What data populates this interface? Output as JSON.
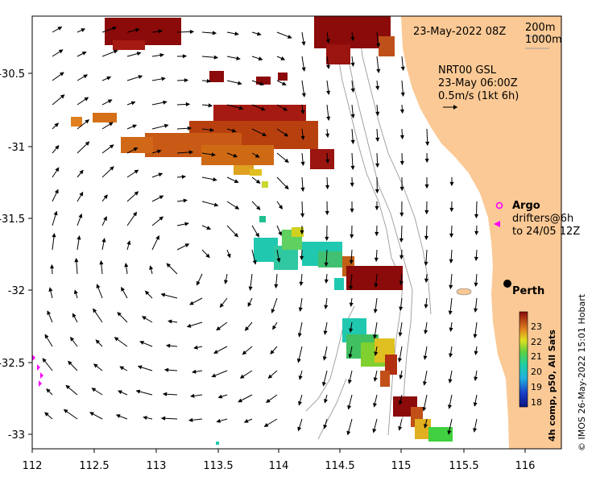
{
  "header": {
    "date_label": "23-May-2022 08Z",
    "depth_200": "200m",
    "depth_1000": "1000m"
  },
  "currents": {
    "line1": "NRT00 GSL",
    "line2": "23-May 06:00Z",
    "line3": "0.5m/s (1kt 6h)"
  },
  "legend": {
    "argo": "Argo",
    "drifters_line1": "drifters@6h",
    "drifters_line2": "to 24/05 12Z"
  },
  "city": {
    "name": "Perth"
  },
  "colorbar": {
    "title": "4h comp, p50, All Sats",
    "ticks": [
      "23",
      "22",
      "21",
      "20",
      "19",
      "18"
    ]
  },
  "credit": "© IMOS 26-May-2022 15:01 Hobart",
  "axes": {
    "x_ticks": [
      "112",
      "112.5",
      "113",
      "113.5",
      "114",
      "114.5",
      "115",
      "115.5",
      "116"
    ],
    "y_ticks": [
      "-30.5",
      "-31",
      "-31.5",
      "-32",
      "-32.5",
      "-33"
    ]
  },
  "colors": {
    "land": "#fbc995",
    "argo": "#ff00ff",
    "drifter": "#ff00ff",
    "sst_cold": "#1a1aa0",
    "sst_warm": "#8b0000"
  }
}
